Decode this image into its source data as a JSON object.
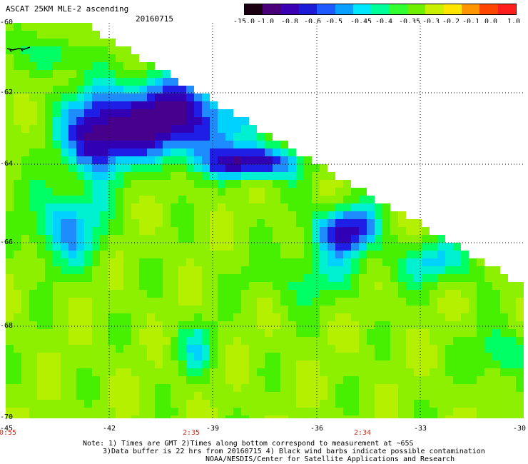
{
  "header": {
    "title": "ASCAT 25KM MLE-2 ascending",
    "date": "20160715"
  },
  "colorbar": {
    "labels": [
      "-15.0",
      "-1.0",
      "-0.8",
      "-0.6",
      "-0.5",
      "-0.45",
      "-0.4",
      "-0.35",
      "-0.3",
      "-0.2",
      "-0.1",
      "0.0",
      "1.0"
    ],
    "colors": [
      "#1a0010",
      "#4a0078",
      "#3c00b4",
      "#1c1cd8",
      "#1e5aff",
      "#0aa0ff",
      "#00e8ff",
      "#00ff9a",
      "#32ff32",
      "#6ef000",
      "#c8f000",
      "#ffe600",
      "#ff9600",
      "#ff4600",
      "#ff1e1e"
    ]
  },
  "map": {
    "lat_labels": [
      "-60",
      "-62",
      "-64",
      "-66",
      "-68",
      "-70"
    ],
    "lon_labels": [
      "-45",
      "-42",
      "-39",
      "-36",
      "-33",
      "-30"
    ],
    "time_labels": [
      "0:55",
      "2:35",
      "2:34"
    ]
  },
  "notes": {
    "line1": "Note: 1) Times are GMT 2)Times along bottom correspond to measurement at ~65S",
    "line2": "3)Data buffer is 22 hrs from 20160715 4) Black wind barbs indicate possible contamination",
    "line3": "NOAA/NESDIS/Center for Satellite Applications and Research"
  }
}
